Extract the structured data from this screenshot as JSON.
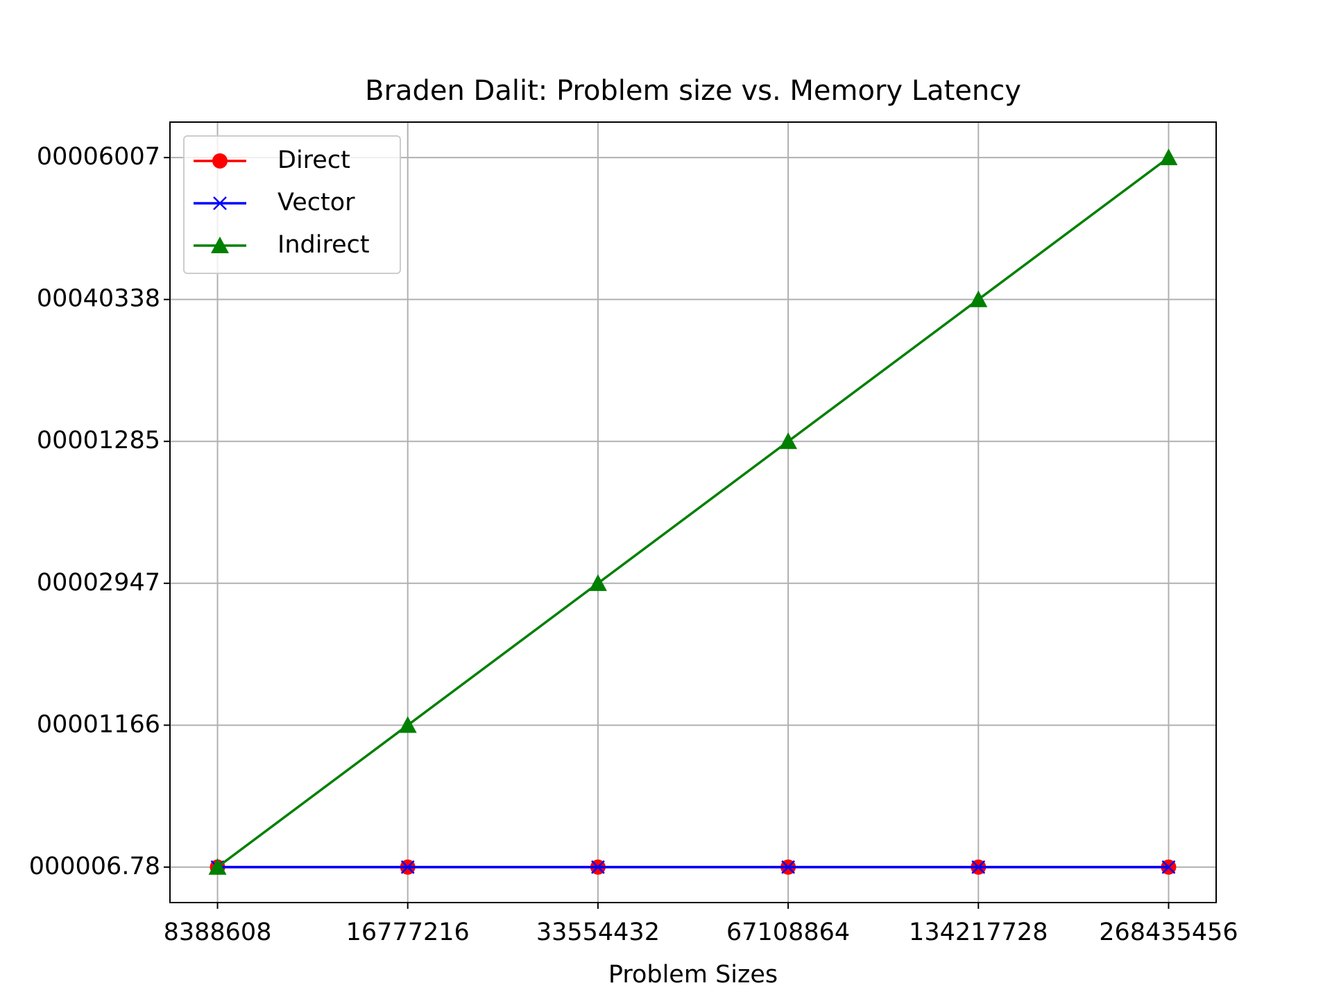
{
  "chart_data": {
    "type": "line",
    "title": "Braden Dalit: Problem size vs. Memory Latency",
    "x_label": "Problem Sizes",
    "categories": [
      "8388608",
      "16777216",
      "33554432",
      "67108864",
      "134217728",
      "268435456"
    ],
    "xlim": [
      -0.25,
      5.25
    ],
    "ylim": [
      -0.25,
      5.25
    ],
    "yticks": [
      {
        "value": 0,
        "label": "000006.78"
      },
      {
        "value": 1,
        "label": "00001166"
      },
      {
        "value": 2,
        "label": "00002947"
      },
      {
        "value": 3,
        "label": "00001285"
      },
      {
        "value": 4,
        "label": "00040338"
      },
      {
        "value": 5,
        "label": "00006007"
      }
    ],
    "grid": true,
    "legend": "upper left",
    "series": [
      {
        "name": "Direct",
        "color": "#ff0000",
        "marker": "circle",
        "values": [
          0,
          0,
          0,
          0,
          0,
          0
        ]
      },
      {
        "name": "Vector",
        "color": "#0000ff",
        "marker": "x",
        "values": [
          0,
          0,
          0,
          0,
          0,
          0
        ]
      },
      {
        "name": "Indirect",
        "color": "#008000",
        "marker": "triangle",
        "values": [
          0,
          1,
          2,
          3,
          4,
          5
        ]
      }
    ]
  }
}
